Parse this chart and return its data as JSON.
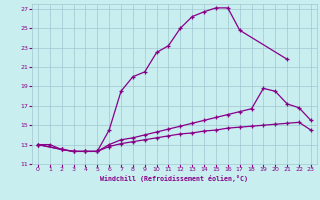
{
  "xlabel": "Windchill (Refroidissement éolien,°C)",
  "bg_color": "#c8eef0",
  "grid_color": "#a0c8d0",
  "line_color": "#880088",
  "xlim": [
    -0.5,
    23.5
  ],
  "ylim": [
    11,
    27.5
  ],
  "xticks": [
    0,
    1,
    2,
    3,
    4,
    5,
    6,
    7,
    8,
    9,
    10,
    11,
    12,
    13,
    14,
    15,
    16,
    17,
    18,
    19,
    20,
    21,
    22,
    23
  ],
  "yticks": [
    11,
    13,
    15,
    17,
    19,
    21,
    23,
    25,
    27
  ],
  "line1_x": [
    0,
    1,
    2,
    3,
    4,
    5,
    6,
    7,
    8,
    9,
    10,
    11,
    12,
    13,
    14,
    15,
    16,
    17,
    21
  ],
  "line1_y": [
    13,
    13,
    12.5,
    12.3,
    12.3,
    12.3,
    14.5,
    18.5,
    20.0,
    20.5,
    22.5,
    23.2,
    25.0,
    26.2,
    26.7,
    27.1,
    27.1,
    24.8,
    21.8
  ],
  "line2_x": [
    0,
    2,
    3,
    4,
    5,
    6,
    7,
    8,
    9,
    10,
    11,
    12,
    13,
    14,
    15,
    16,
    17,
    18,
    19,
    20,
    21,
    22,
    23
  ],
  "line2_y": [
    13,
    12.5,
    12.3,
    12.3,
    12.3,
    13.0,
    13.5,
    13.7,
    14.0,
    14.3,
    14.6,
    14.9,
    15.2,
    15.5,
    15.8,
    16.1,
    16.4,
    16.7,
    18.8,
    18.5,
    17.2,
    16.8,
    15.5
  ],
  "line3_x": [
    0,
    2,
    3,
    4,
    5,
    6,
    7,
    8,
    9,
    10,
    11,
    12,
    13,
    14,
    15,
    16,
    17,
    18,
    19,
    20,
    21,
    22,
    23
  ],
  "line3_y": [
    13,
    12.5,
    12.3,
    12.3,
    12.3,
    12.8,
    13.1,
    13.3,
    13.5,
    13.7,
    13.9,
    14.1,
    14.2,
    14.4,
    14.5,
    14.7,
    14.8,
    14.9,
    15.0,
    15.1,
    15.2,
    15.3,
    14.5
  ]
}
